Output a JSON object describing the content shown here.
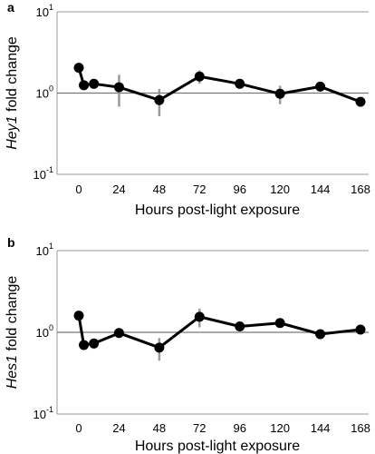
{
  "chart_data": [
    {
      "panel": "a",
      "type": "line",
      "ylabel_gene": "Hey1",
      "ylabel_rest": " fold change",
      "xlabel": "Hours post-light exposure",
      "y_scale": "log",
      "ylim": [
        0.1,
        10
      ],
      "reference_line_y": 1,
      "x_ticks": [
        0,
        24,
        48,
        72,
        96,
        120,
        144,
        168
      ],
      "y_ticks": [
        {
          "value": 0.1,
          "base": "10",
          "exp": "-1"
        },
        {
          "value": 1,
          "base": "10",
          "exp": "0"
        },
        {
          "value": 10,
          "base": "10",
          "exp": "1"
        }
      ],
      "series": [
        {
          "x": [
            0,
            3,
            9,
            24,
            48,
            72,
            96,
            120,
            144,
            168
          ],
          "y": [
            2.05,
            1.25,
            1.3,
            1.18,
            0.82,
            1.6,
            1.3,
            0.98,
            1.2,
            0.78
          ],
          "err": [
            0.2,
            0.1,
            0.1,
            0.5,
            0.3,
            0.3,
            0.1,
            0.25,
            0.1,
            0.05
          ]
        }
      ]
    },
    {
      "panel": "b",
      "type": "line",
      "ylabel_gene": "Hes1",
      "ylabel_rest": " fold change",
      "xlabel": "Hours post-light exposure",
      "y_scale": "log",
      "ylim": [
        0.1,
        10
      ],
      "reference_line_y": 1,
      "x_ticks": [
        0,
        24,
        48,
        72,
        96,
        120,
        144,
        168
      ],
      "y_ticks": [
        {
          "value": 0.1,
          "base": "10",
          "exp": "-1"
        },
        {
          "value": 1,
          "base": "10",
          "exp": "0"
        },
        {
          "value": 10,
          "base": "10",
          "exp": "1"
        }
      ],
      "series": [
        {
          "x": [
            0,
            3,
            9,
            24,
            48,
            72,
            96,
            120,
            144,
            168
          ],
          "y": [
            1.6,
            0.7,
            0.73,
            0.98,
            0.65,
            1.55,
            1.18,
            1.3,
            0.95,
            1.08
          ],
          "err": [
            0.1,
            0.08,
            0.05,
            0.08,
            0.2,
            0.4,
            0.1,
            0.12,
            0.06,
            0.08
          ]
        }
      ]
    }
  ]
}
